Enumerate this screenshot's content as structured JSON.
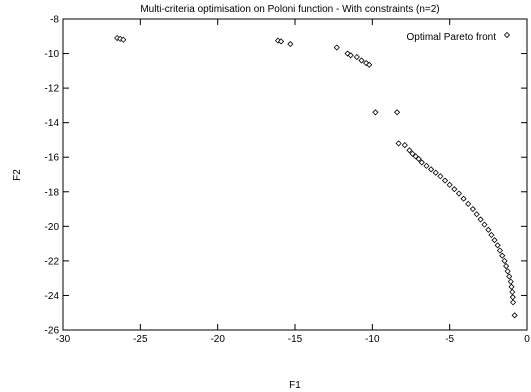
{
  "chart_data": {
    "type": "scatter",
    "title": "Multi-criteria optimisation on Poloni function - With constraints (n=2)",
    "xlabel": "F1",
    "ylabel": "F2",
    "xlim": [
      -30,
      0
    ],
    "ylim": [
      -26,
      -8
    ],
    "xticks": [
      -30,
      -25,
      -20,
      -15,
      -10,
      -5,
      0
    ],
    "yticks": [
      -26,
      -24,
      -22,
      -20,
      -18,
      -16,
      -14,
      -12,
      -10,
      -8
    ],
    "grid": false,
    "legend_position": "top-right",
    "marker": "diamond",
    "marker_color": "#000000",
    "series": [
      {
        "name": "Optimal Pareto front",
        "points": [
          [
            -26.5,
            -9.1
          ],
          [
            -26.3,
            -9.15
          ],
          [
            -26.1,
            -9.2
          ],
          [
            -16.1,
            -9.25
          ],
          [
            -15.9,
            -9.3
          ],
          [
            -15.3,
            -9.45
          ],
          [
            -12.3,
            -9.65
          ],
          [
            -11.6,
            -10.0
          ],
          [
            -11.4,
            -10.1
          ],
          [
            -11.0,
            -10.2
          ],
          [
            -10.7,
            -10.4
          ],
          [
            -10.4,
            -10.55
          ],
          [
            -10.2,
            -10.65
          ],
          [
            -9.8,
            -13.4
          ],
          [
            -8.4,
            -13.4
          ],
          [
            -8.3,
            -15.2
          ],
          [
            -7.9,
            -15.3
          ],
          [
            -7.6,
            -15.6
          ],
          [
            -7.4,
            -15.8
          ],
          [
            -7.2,
            -15.95
          ],
          [
            -7.0,
            -16.1
          ],
          [
            -6.8,
            -16.3
          ],
          [
            -6.5,
            -16.5
          ],
          [
            -6.2,
            -16.7
          ],
          [
            -5.9,
            -16.9
          ],
          [
            -5.6,
            -17.1
          ],
          [
            -5.3,
            -17.35
          ],
          [
            -5.0,
            -17.6
          ],
          [
            -4.7,
            -17.85
          ],
          [
            -4.4,
            -18.1
          ],
          [
            -4.1,
            -18.4
          ],
          [
            -3.8,
            -18.7
          ],
          [
            -3.5,
            -19.0
          ],
          [
            -3.25,
            -19.3
          ],
          [
            -3.0,
            -19.6
          ],
          [
            -2.75,
            -19.9
          ],
          [
            -2.5,
            -20.2
          ],
          [
            -2.3,
            -20.5
          ],
          [
            -2.1,
            -20.8
          ],
          [
            -1.9,
            -21.1
          ],
          [
            -1.75,
            -21.4
          ],
          [
            -1.6,
            -21.7
          ],
          [
            -1.45,
            -22.0
          ],
          [
            -1.35,
            -22.3
          ],
          [
            -1.25,
            -22.6
          ],
          [
            -1.15,
            -22.9
          ],
          [
            -1.05,
            -23.2
          ],
          [
            -1.0,
            -23.5
          ],
          [
            -0.95,
            -23.8
          ],
          [
            -0.92,
            -24.1
          ],
          [
            -0.9,
            -24.4
          ],
          [
            -0.8,
            -25.15
          ]
        ]
      }
    ]
  }
}
